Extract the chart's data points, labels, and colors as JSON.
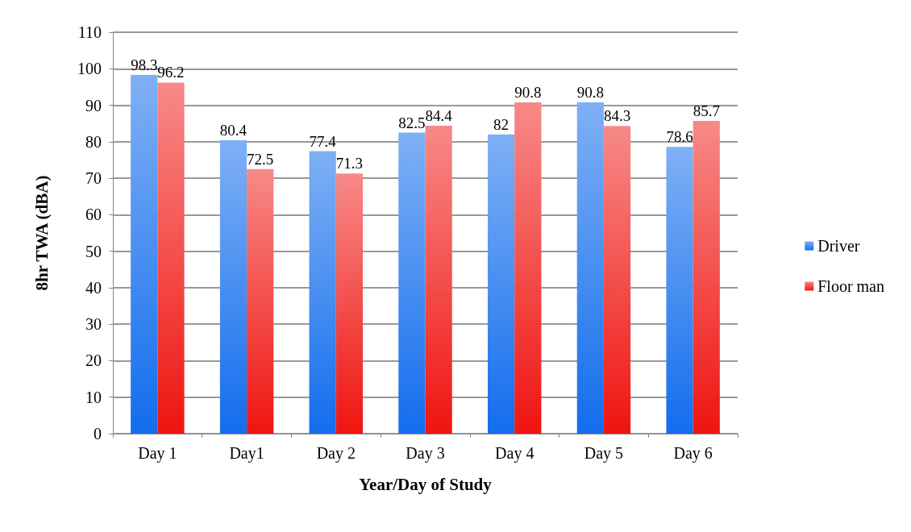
{
  "chart_data": {
    "type": "bar",
    "xlabel": "Year/Day of Study",
    "ylabel": "8hr TWA (dBA)",
    "categories": [
      "Day 1",
      "Day1",
      "Day 2",
      "Day 3",
      "Day 4",
      "Day 5",
      "Day 6"
    ],
    "series": [
      {
        "name": "Driver",
        "color": "#7fb0f5",
        "values": [
          98.3,
          80.4,
          77.4,
          82.5,
          82,
          90.8,
          78.6
        ]
      },
      {
        "name": "Floor man",
        "color": "#f78a88",
        "values": [
          96.2,
          72.5,
          71.3,
          84.4,
          90.8,
          84.3,
          85.7
        ]
      }
    ],
    "ylim": [
      0,
      110
    ],
    "yticks": [
      0,
      10,
      20,
      30,
      40,
      50,
      60,
      70,
      80,
      90,
      100,
      110
    ],
    "grid": "y",
    "legend": "right",
    "data_labels": true
  }
}
